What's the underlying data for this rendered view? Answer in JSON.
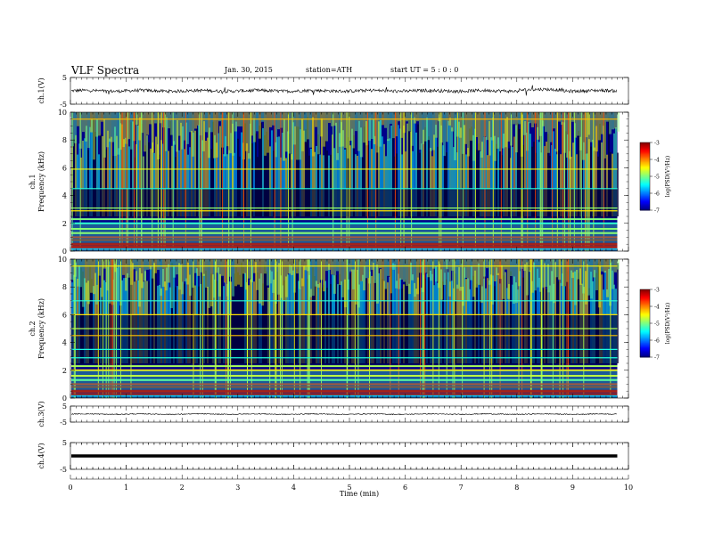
{
  "header": {
    "title": "VLF  Spectra",
    "date": "Jan. 30, 2015",
    "station": "station=ATH",
    "start": "start  UT  =   5  : 0  : 0"
  },
  "chart_data": {
    "type": "heatmap",
    "xlabel": "Time  (min)",
    "xlim": [
      0,
      10
    ],
    "x_ticks": [
      "0",
      "1",
      "2",
      "3",
      "4",
      "5",
      "6",
      "7",
      "8",
      "9",
      "10"
    ],
    "data_end_min": 9.8,
    "panels": [
      {
        "kind": "line",
        "ylabel": "ch.1(V)",
        "ylim": [
          -5,
          5
        ],
        "y_ticks": [
          "5",
          "-5"
        ],
        "mean_level": 0.0,
        "noise": 0.6
      },
      {
        "kind": "spectrogram",
        "channel_label": "ch.1",
        "ylabel": "Frequency  (kHz)",
        "ylim": [
          0,
          10
        ],
        "y_ticks": [
          "0",
          "2",
          "4",
          "6",
          "8",
          "10"
        ],
        "colorbar": {
          "label": "log(PSD(V²/Hz)",
          "range": [
            -7,
            -3
          ],
          "ticks": [
            "-3",
            "-4",
            "-5",
            "-6",
            "-7"
          ]
        },
        "strong_bands_khz": [
          0.15,
          0.3,
          0.5,
          0.8,
          1.0,
          1.3,
          1.6,
          2.0,
          2.3,
          2.9,
          3.1,
          4.5,
          5.9,
          9.5
        ]
      },
      {
        "kind": "spectrogram",
        "channel_label": "ch.2",
        "ylabel": "Frequency  (kHz)",
        "ylim": [
          0,
          10
        ],
        "y_ticks": [
          "0",
          "2",
          "4",
          "6",
          "8",
          "10"
        ],
        "colorbar": {
          "label": "log(PSD(V²/Hz)",
          "range": [
            -7,
            -3
          ],
          "ticks": [
            "-3",
            "-4",
            "-5",
            "-6",
            "-7"
          ]
        },
        "strong_bands_khz": [
          0.2,
          0.5,
          0.8,
          1.0,
          1.3,
          1.6,
          2.0,
          2.3,
          2.9,
          3.5,
          4.5,
          5.0,
          6.0,
          7.0,
          9.5
        ]
      },
      {
        "kind": "line",
        "ylabel": "ch.3(V)",
        "ylim": [
          -5,
          5
        ],
        "y_ticks": [
          "5",
          "-5"
        ],
        "mean_level": 0.0,
        "noise": 0.3
      },
      {
        "kind": "line",
        "ylabel": "ch.4(V)",
        "ylim": [
          -5,
          5
        ],
        "y_ticks": [
          "5",
          "-5"
        ],
        "mean_level": 0.0,
        "noise": 0.0
      }
    ],
    "grid": false
  }
}
